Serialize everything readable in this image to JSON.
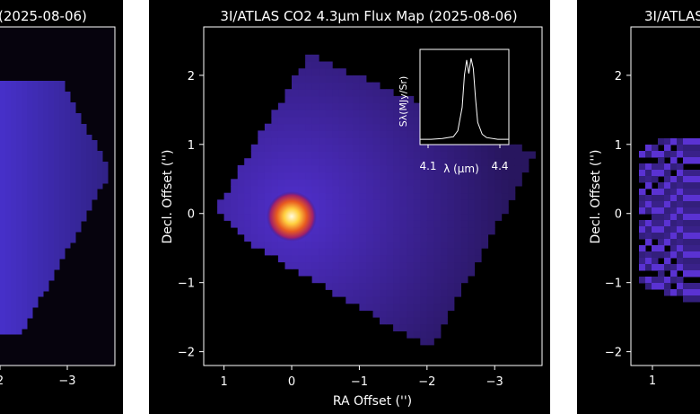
{
  "chart_data": [
    {
      "type": "heatmap",
      "title": "3I/ATLAS CO2 4.3µm Flux Map (2025-08-06)",
      "xlabel": "RA Offset ('')",
      "ylabel": "Decl. Offset ('')",
      "xlim": [
        1.3,
        -3.7
      ],
      "ylim": [
        -2.2,
        2.7
      ],
      "x_ticks": [
        "1",
        "0",
        "−1",
        "−2",
        "−3"
      ],
      "y_ticks": [
        "2",
        "1",
        "0",
        "−1",
        "−2"
      ],
      "colormap": "inferno",
      "peak_offset": [
        0.0,
        0.0
      ],
      "inset": {
        "type": "line",
        "xlabel": "λ (µm)",
        "ylabel": "Sλ(MJy/Sr)",
        "x_ticks": [
          "4.1",
          "4.4"
        ],
        "xlim": [
          4.05,
          4.45
        ],
        "x": [
          4.05,
          4.1,
          4.15,
          4.2,
          4.22,
          4.24,
          4.25,
          4.26,
          4.27,
          4.28,
          4.29,
          4.3,
          4.31,
          4.33,
          4.35,
          4.4,
          4.45
        ],
        "y": [
          0.02,
          0.02,
          0.03,
          0.05,
          0.12,
          0.4,
          0.78,
          0.96,
          0.8,
          0.98,
          0.86,
          0.5,
          0.22,
          0.08,
          0.04,
          0.02,
          0.02
        ]
      }
    },
    {
      "type": "heatmap",
      "title_visible": "(2025-08-06)",
      "x_ticks": [
        "2",
        "−3"
      ],
      "colormap": "inferno"
    },
    {
      "type": "heatmap",
      "title_visible": "3I/ATLAS",
      "ylabel": "Decl. Offset ('')",
      "y_ticks": [
        "2",
        "1",
        "0",
        "−1",
        "−2"
      ],
      "x_ticks": [
        "1"
      ],
      "colormap": "inferno"
    }
  ]
}
